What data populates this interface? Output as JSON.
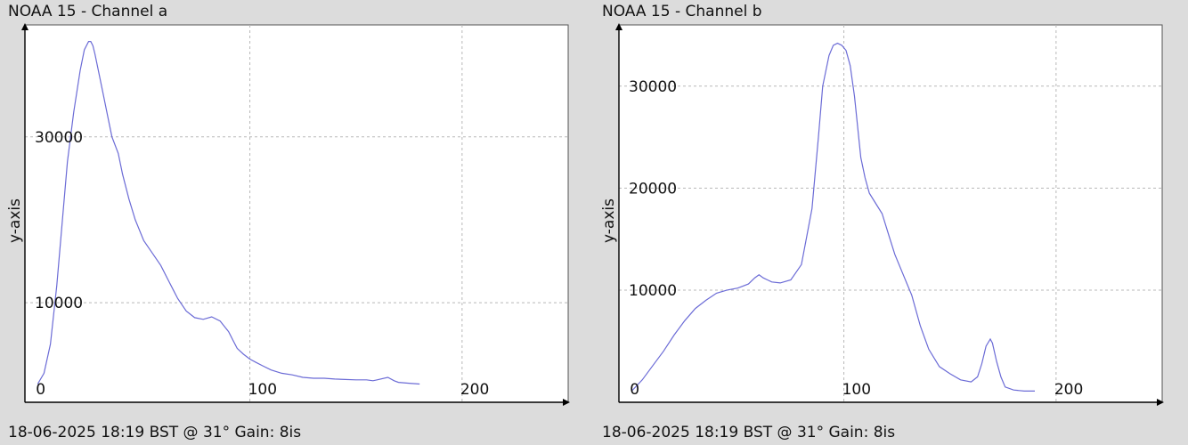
{
  "chart_data": [
    {
      "type": "line",
      "title": "NOAA 15 - Channel a",
      "footer": "18-06-2025 18:19 BST @ 31° Gain: 8is",
      "xlabel": "",
      "ylabel": "y-axis",
      "xlim": [
        -6,
        250
      ],
      "ylim": [
        -2000,
        43500
      ],
      "xticks": [
        {
          "value": 0,
          "label": "0"
        },
        {
          "value": 100,
          "label": "100"
        },
        {
          "value": 200,
          "label": "200"
        }
      ],
      "yticks": [
        {
          "value": 10000,
          "label": "10000"
        },
        {
          "value": 30000,
          "label": "30000"
        }
      ],
      "grid": true,
      "line_color": "#6b6bd6",
      "series": [
        {
          "x": [
            0,
            3,
            6,
            9,
            12,
            14,
            17,
            20,
            22,
            24,
            25,
            26,
            27,
            29,
            31,
            33,
            35,
            38,
            40,
            43,
            46,
            50,
            54,
            58,
            62,
            64,
            66,
            70,
            74,
            78,
            82,
            86,
            90,
            92,
            94,
            97,
            100,
            103,
            106,
            110,
            115,
            120,
            125,
            130,
            135,
            140,
            145,
            150,
            155,
            158,
            160,
            165,
            168,
            170,
            175,
            180
          ],
          "y": [
            200,
            1500,
            5000,
            12000,
            21000,
            27000,
            33000,
            38000,
            40500,
            41500,
            41500,
            41000,
            40000,
            37500,
            35000,
            32500,
            30000,
            28000,
            25500,
            22500,
            20000,
            17500,
            16000,
            14500,
            12500,
            11500,
            10500,
            9000,
            8200,
            8000,
            8300,
            7800,
            6500,
            5500,
            4500,
            3800,
            3200,
            2800,
            2400,
            1900,
            1500,
            1300,
            1000,
            900,
            900,
            800,
            750,
            700,
            700,
            600,
            700,
            1000,
            600,
            400,
            300,
            200
          ]
        }
      ]
    },
    {
      "type": "line",
      "title": "NOAA 15 - Channel b",
      "footer": "18-06-2025 18:19 BST @ 31° Gain: 8is",
      "xlabel": "",
      "ylabel": "y-axis",
      "xlim": [
        -6,
        250
      ],
      "ylim": [
        -1000,
        36000
      ],
      "xticks": [
        {
          "value": 0,
          "label": "0"
        },
        {
          "value": 100,
          "label": "100"
        },
        {
          "value": 200,
          "label": "200"
        }
      ],
      "yticks": [
        {
          "value": 10000,
          "label": "10000"
        },
        {
          "value": 20000,
          "label": "20000"
        },
        {
          "value": 30000,
          "label": "30000"
        }
      ],
      "grid": true,
      "line_color": "#6b6bd6",
      "series": [
        {
          "x": [
            0,
            5,
            10,
            15,
            20,
            25,
            30,
            35,
            40,
            45,
            50,
            55,
            58,
            60,
            62,
            64,
            66,
            70,
            75,
            80,
            85,
            88,
            90,
            93,
            95,
            97,
            99,
            101,
            103,
            105,
            108,
            110,
            112,
            115,
            118,
            121,
            124,
            128,
            132,
            136,
            140,
            145,
            150,
            155,
            160,
            163,
            165,
            167,
            169,
            170,
            172,
            174,
            176,
            180,
            185,
            190
          ],
          "y": [
            100,
            1200,
            2600,
            4000,
            5600,
            7000,
            8200,
            9000,
            9700,
            10000,
            10200,
            10600,
            11200,
            11500,
            11200,
            11000,
            10800,
            10700,
            11000,
            12500,
            18000,
            25000,
            30000,
            33000,
            34000,
            34200,
            34000,
            33500,
            32000,
            29000,
            23000,
            21000,
            19500,
            18500,
            17500,
            15500,
            13500,
            11500,
            9500,
            6500,
            4200,
            2500,
            1800,
            1200,
            1000,
            1500,
            2800,
            4500,
            5200,
            4800,
            3000,
            1500,
            500,
            200,
            100,
            100
          ]
        }
      ]
    }
  ]
}
